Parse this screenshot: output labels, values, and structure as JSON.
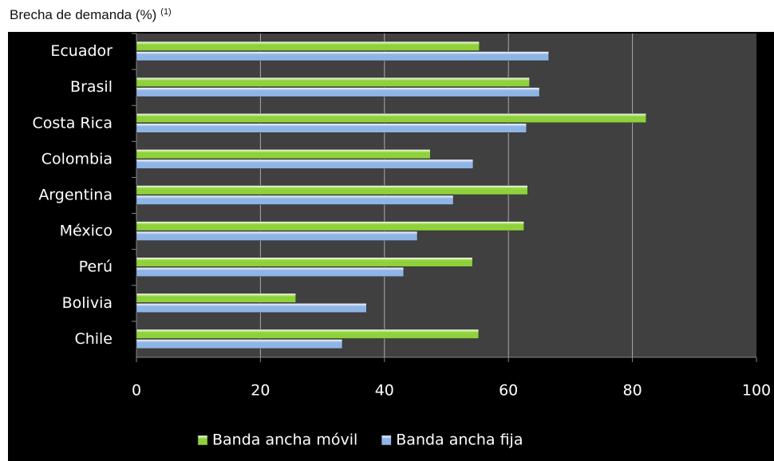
{
  "chart_data": {
    "type": "hbar",
    "title": "Brecha de demanda (%)",
    "title_note": "(1)",
    "categories": [
      "Ecuador",
      "Brasil",
      "Costa Rica",
      "Colombia",
      "Argentina",
      "México",
      "Perú",
      "Bolivia",
      "Chile"
    ],
    "series": [
      {
        "name": "Banda ancha móvil",
        "color": "#8fd13a",
        "values": [
          55.3,
          63.4,
          82.2,
          47.4,
          63.1,
          62.5,
          54.2,
          25.7,
          55.2
        ]
      },
      {
        "name": "Banda ancha fija",
        "color": "#8fb4e6",
        "values": [
          66.5,
          65,
          62.9,
          54.3,
          51.1,
          45.3,
          43.1,
          37.1,
          33.2
        ]
      }
    ],
    "xlim": [
      0,
      100
    ],
    "xticks": [
      0,
      20,
      40,
      60,
      80,
      100
    ],
    "grid": true,
    "legend": "bottom"
  }
}
